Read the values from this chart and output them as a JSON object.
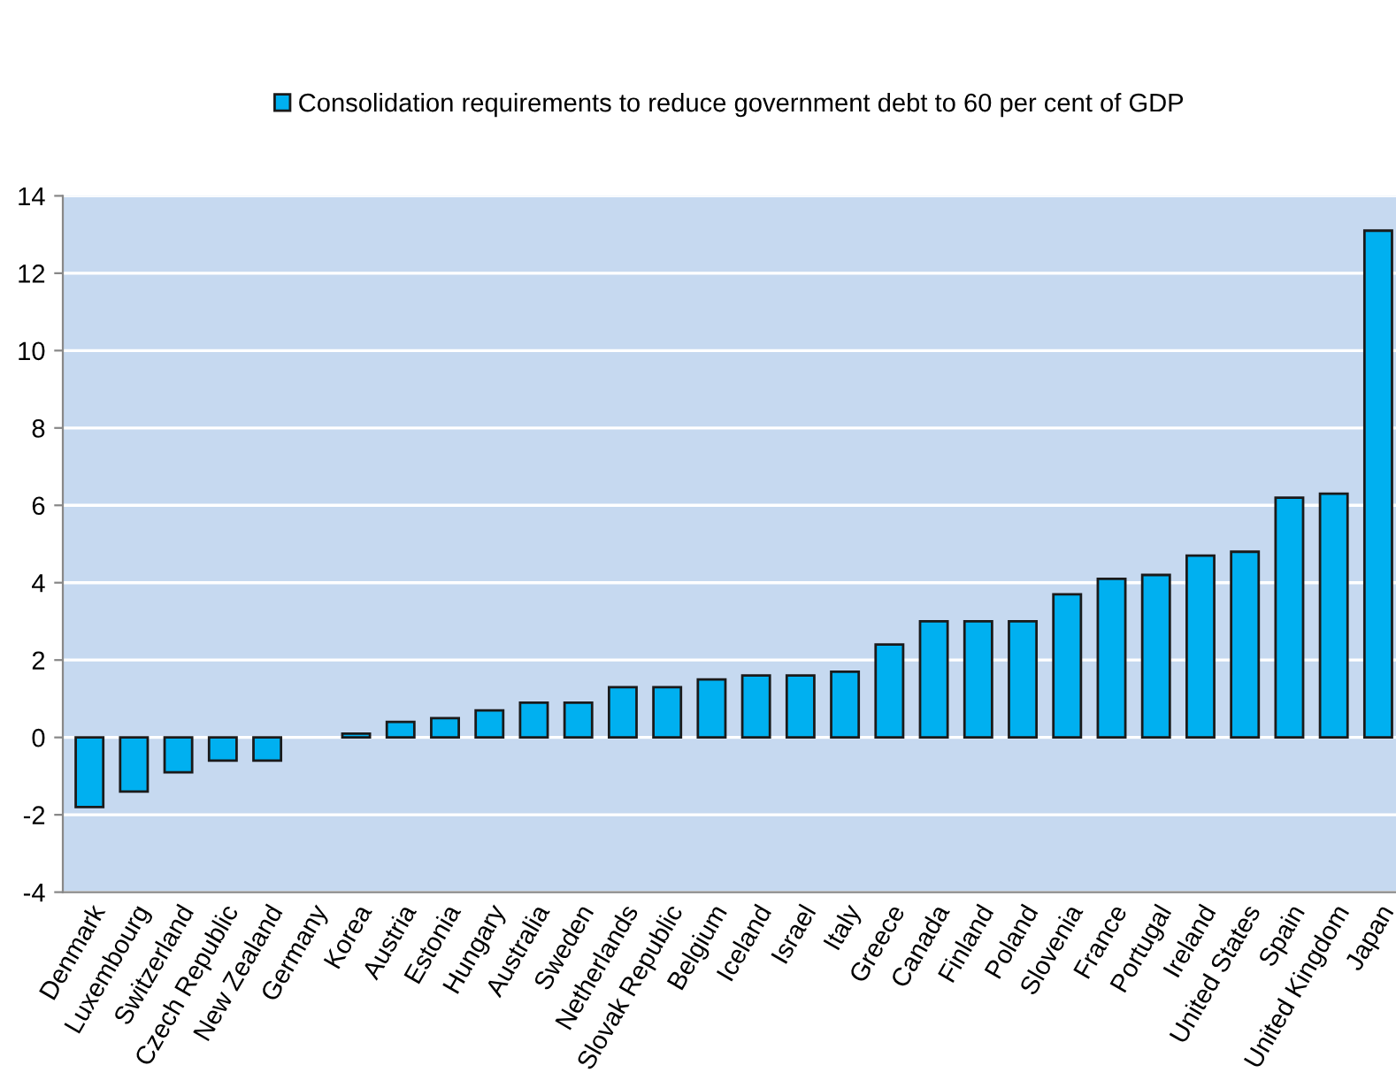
{
  "chart_data": {
    "type": "bar",
    "categories": [
      "Denmark",
      "Luxembourg",
      "Switzerland",
      "Czech Republic",
      "New Zealand",
      "Germany",
      "Korea",
      "Austria",
      "Estonia",
      "Hungary",
      "Australia",
      "Sweden",
      "Netherlands",
      "Slovak Republic",
      "Belgium",
      "Iceland",
      "Israel",
      "Italy",
      "Greece",
      "Canada",
      "Finland",
      "Poland",
      "Slovenia",
      "France",
      "Portugal",
      "Ireland",
      "United States",
      "Spain",
      "United Kingdom",
      "Japan"
    ],
    "series": [
      {
        "name": "Consolidation requirements to reduce government debt to 60 per cent of GDP",
        "color": "#00b0f0",
        "values": [
          -1.8,
          -1.4,
          -0.9,
          -0.6,
          -0.6,
          0,
          0.1,
          0.4,
          0.5,
          0.7,
          0.9,
          0.9,
          1.3,
          1.3,
          1.5,
          1.6,
          1.6,
          1.7,
          2.4,
          3.0,
          3.0,
          3.0,
          3.7,
          4.1,
          4.2,
          4.7,
          4.8,
          6.2,
          6.3,
          13.1
        ]
      }
    ],
    "ylim": [
      -4,
      14
    ],
    "yticks": [
      -4,
      -2,
      0,
      2,
      4,
      6,
      8,
      10,
      12,
      14
    ],
    "grid": "y",
    "legend": "top"
  }
}
